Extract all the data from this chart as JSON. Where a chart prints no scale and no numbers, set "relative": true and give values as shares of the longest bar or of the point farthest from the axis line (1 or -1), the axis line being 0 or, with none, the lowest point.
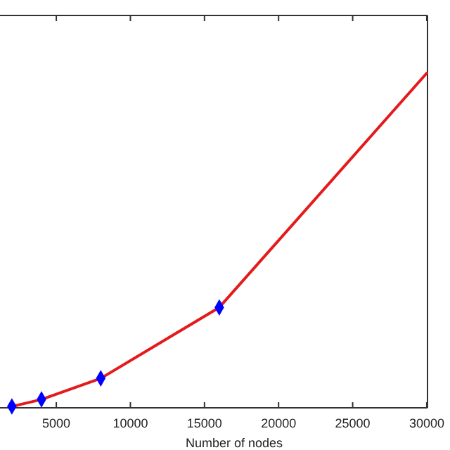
{
  "chart_data": {
    "type": "line",
    "xlabel": "Number of nodes",
    "relative": true,
    "xlim": [
      1200,
      30050
    ],
    "xticks": [
      5000,
      10000,
      15000,
      20000,
      25000,
      30000
    ],
    "series": [
      {
        "type": "line",
        "color": "#e41a1c",
        "marker": "none",
        "x": [
          2000,
          4000,
          8000,
          16000,
          30000
        ],
        "values": [
          0.004,
          0.025,
          0.088,
          0.3,
          1
        ]
      },
      {
        "type": "scatter",
        "color": "#0000ff",
        "marker": "diamond",
        "x": [
          2000,
          4000,
          8000,
          16000
        ],
        "values": [
          0.004,
          0.025,
          0.088,
          0.3
        ]
      }
    ]
  }
}
